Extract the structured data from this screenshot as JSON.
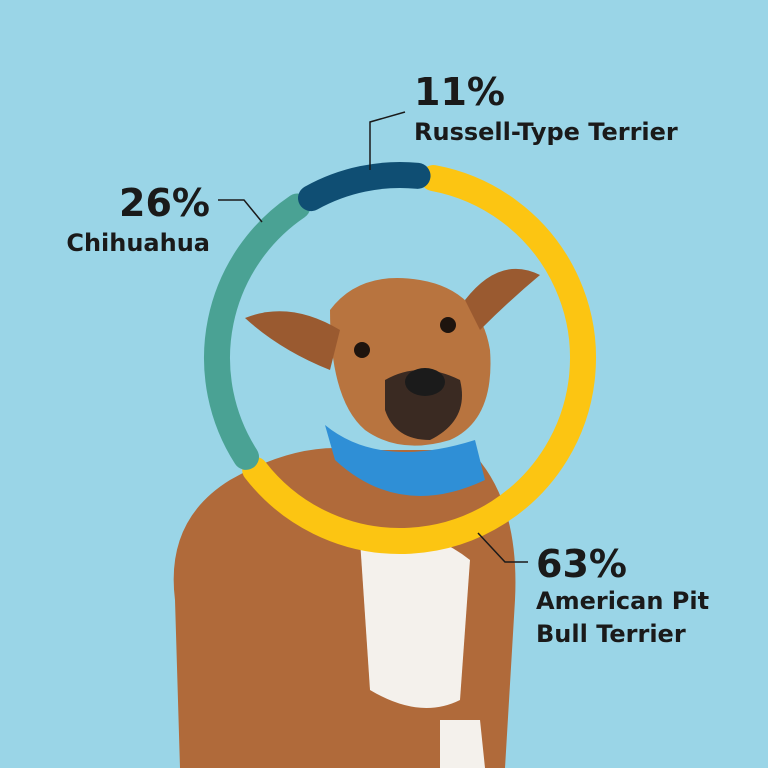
{
  "chart_data": {
    "type": "donut",
    "categories": [
      "Russell-Type Terrier",
      "Chihuahua",
      "American Pit Bull Terrier"
    ],
    "values": [
      11,
      26,
      63
    ],
    "value_labels": [
      "11%",
      "26%",
      "63%"
    ],
    "colors": [
      "#0f4e73",
      "#4aa294",
      "#fcc512"
    ]
  }
}
